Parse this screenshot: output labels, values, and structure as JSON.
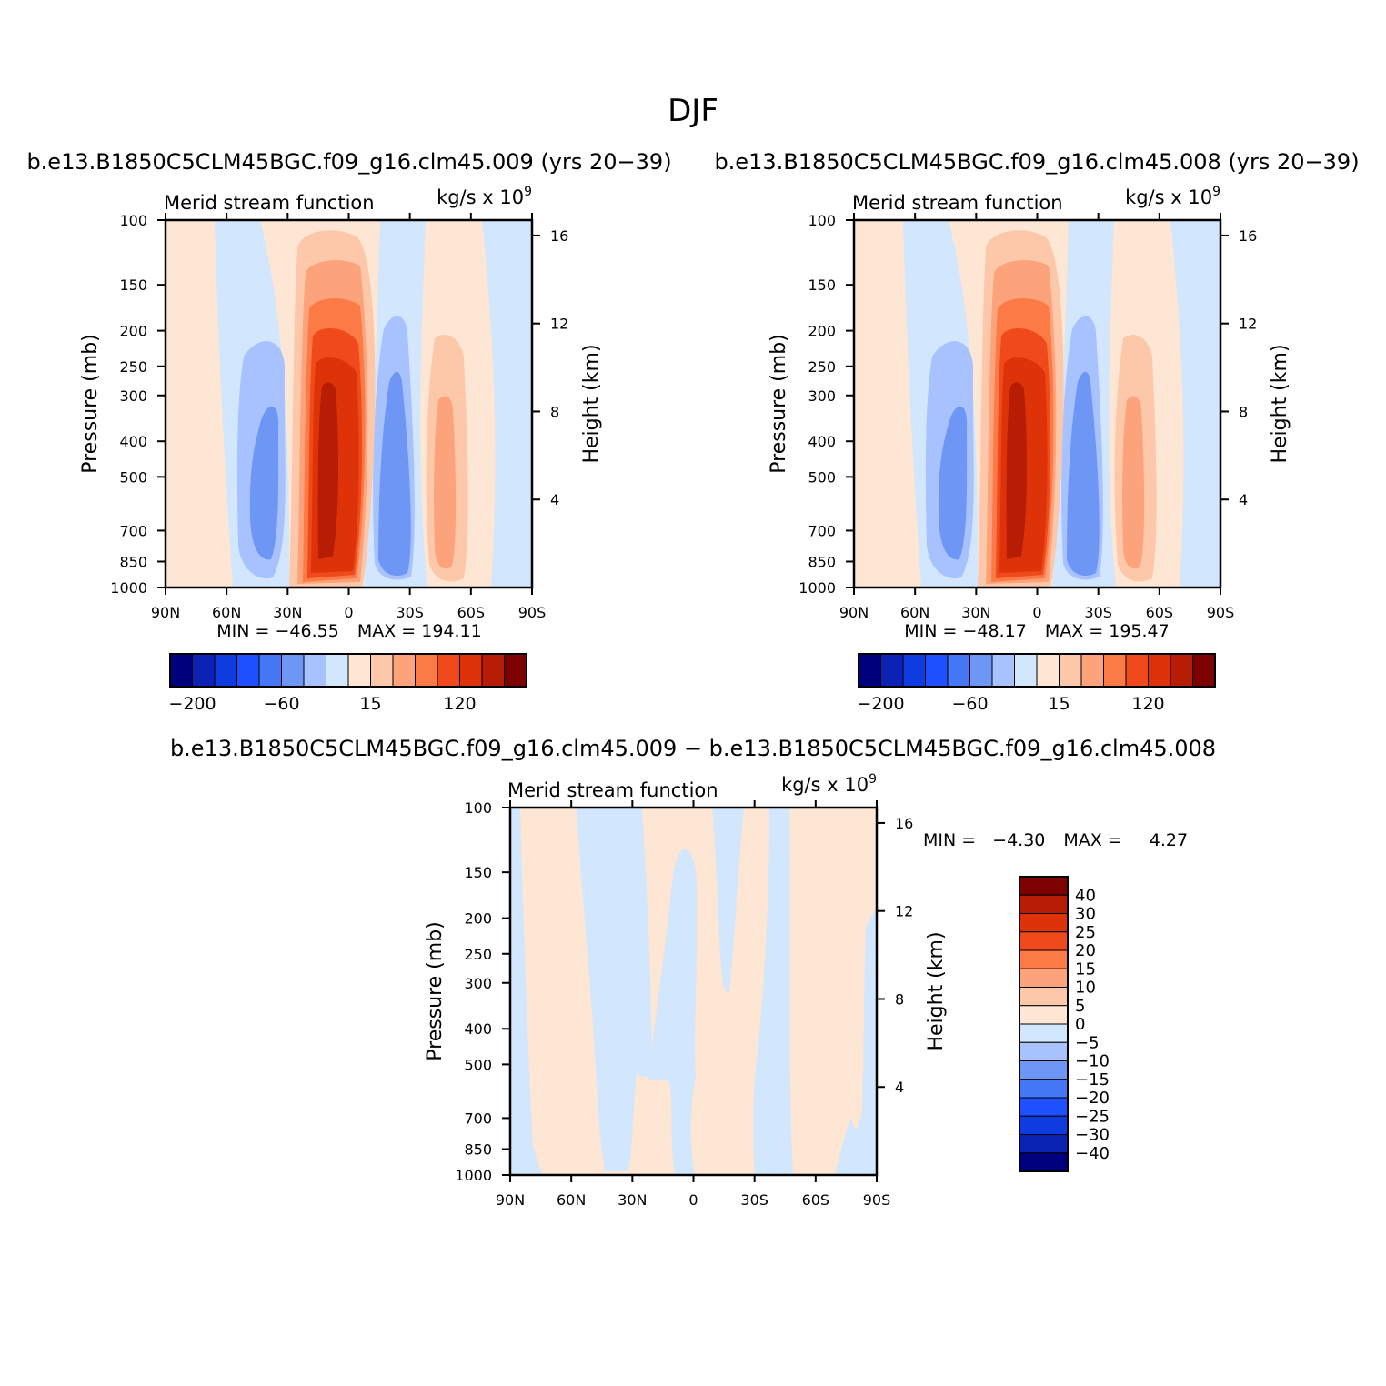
{
  "figure": {
    "title": "DJF",
    "diff_title": "b.e13.B1850C5CLM45BGC.f09_g16.clm45.009 − b.e13.B1850C5CLM45BGC.f09_g16.clm45.008"
  },
  "colors": {
    "levels_main": [
      "#00007f",
      "#0a23b4",
      "#0f3ce0",
      "#1e50ff",
      "#4478f7",
      "#6e96f5",
      "#a7c2ff",
      "#d2e6fd",
      "#fde6d4",
      "#fdc8aa",
      "#fca37c",
      "#fc7a46",
      "#f0491b",
      "#de3308",
      "#b71d05",
      "#7d0100"
    ],
    "levels_diff": [
      "#00007f",
      "#0a23b4",
      "#0f3ce0",
      "#1e50ff",
      "#4478f7",
      "#6e96f5",
      "#a7c2ff",
      "#d2e6fd",
      "#fde6d4",
      "#fdc8aa",
      "#fca37c",
      "#fc7a46",
      "#f0491b",
      "#de3308",
      "#b71d05",
      "#7d0100"
    ]
  },
  "chart_data": [
    {
      "type": "contour",
      "id": "case009",
      "title": "b.e13.B1850C5CLM45BGC.f09_g16.clm45.009 (yrs 20−39)",
      "left_string": "Merid stream function",
      "right_string": "kg/s x 10",
      "right_string_sup": "9",
      "ylabel": "Pressure (mb)",
      "ylabel_right": "Height (km)",
      "x_ticks": [
        "90N",
        "60N",
        "30N",
        "0",
        "30S",
        "60S",
        "90S"
      ],
      "x_values": [
        90,
        60,
        30,
        0,
        -30,
        -60,
        -90
      ],
      "y_ticks": [
        100,
        150,
        200,
        250,
        300,
        400,
        500,
        700,
        850,
        1000
      ],
      "y_right_ticks": [
        16,
        12,
        8,
        4
      ],
      "stats": {
        "min_label": "MIN = ",
        "min": "−46.55",
        "max_label": "MAX = ",
        "max": "194.11"
      },
      "colorbar_labels": [
        "−200",
        "−60",
        "15",
        "120"
      ],
      "cells": [
        {
          "lat": 50,
          "p": 500,
          "level": 6
        },
        {
          "lat": 40,
          "p": 500,
          "level": 5
        },
        {
          "lat": 10,
          "p": 500,
          "level": 15
        },
        {
          "lat": -22,
          "p": 500,
          "level": 5
        },
        {
          "lat": -48,
          "p": 500,
          "level": 10
        }
      ]
    },
    {
      "type": "contour",
      "id": "case008",
      "title": "b.e13.B1850C5CLM45BGC.f09_g16.clm45.008 (yrs 20−39)",
      "left_string": "Merid stream function",
      "right_string": "kg/s x 10",
      "right_string_sup": "9",
      "ylabel": "Pressure (mb)",
      "ylabel_right": "Height (km)",
      "x_ticks": [
        "90N",
        "60N",
        "30N",
        "0",
        "30S",
        "60S",
        "90S"
      ],
      "x_values": [
        90,
        60,
        30,
        0,
        -30,
        -60,
        -90
      ],
      "y_ticks": [
        100,
        150,
        200,
        250,
        300,
        400,
        500,
        700,
        850,
        1000
      ],
      "y_right_ticks": [
        16,
        12,
        8,
        4
      ],
      "stats": {
        "min_label": "MIN = ",
        "min": "−48.17",
        "max_label": "MAX = ",
        "max": "195.47"
      },
      "colorbar_labels": [
        "−200",
        "−60",
        "15",
        "120"
      ],
      "cells": [
        {
          "lat": 50,
          "p": 500,
          "level": 6
        },
        {
          "lat": 40,
          "p": 500,
          "level": 5
        },
        {
          "lat": 10,
          "p": 500,
          "level": 15
        },
        {
          "lat": -22,
          "p": 500,
          "level": 5
        },
        {
          "lat": -48,
          "p": 500,
          "level": 10
        }
      ]
    },
    {
      "type": "contour",
      "id": "diff",
      "left_string": "Merid stream function",
      "right_string": "kg/s x 10",
      "right_string_sup": "9",
      "ylabel": "Pressure (mb)",
      "ylabel_right": "Height (km)",
      "x_ticks": [
        "90N",
        "60N",
        "30N",
        "0",
        "30S",
        "60S",
        "90S"
      ],
      "x_values": [
        90,
        60,
        30,
        0,
        -30,
        -60,
        -90
      ],
      "y_ticks": [
        100,
        150,
        200,
        250,
        300,
        400,
        500,
        700,
        850,
        1000
      ],
      "y_right_ticks": [
        16,
        12,
        8,
        4
      ],
      "stats": {
        "min_label": "MIN =",
        "min": "−4.30",
        "max_label": "MAX =",
        "max": "4.27"
      },
      "colorbar_labels": [
        "40",
        "30",
        "25",
        "20",
        "15",
        "10",
        "5",
        "0",
        "−5",
        "−10",
        "−15",
        "−20",
        "−25",
        "−30",
        "−40"
      ]
    }
  ]
}
